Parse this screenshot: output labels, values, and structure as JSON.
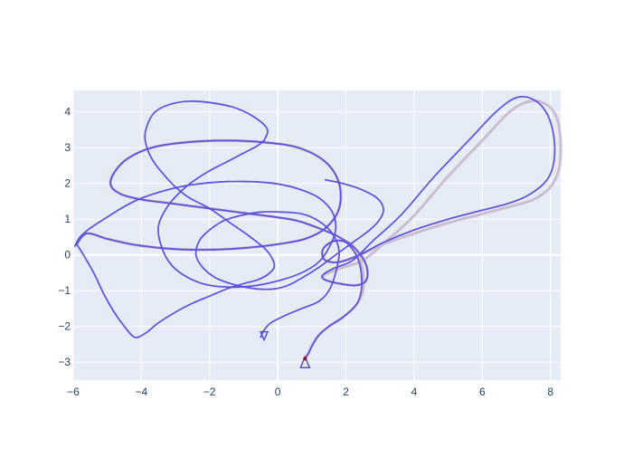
{
  "chart_data": {
    "type": "line",
    "title": "",
    "xlabel": "",
    "ylabel": "",
    "xlim": [
      -6,
      8.3
    ],
    "ylim": [
      -3.5,
      4.6
    ],
    "x_ticks": [
      -6,
      -4,
      -2,
      0,
      2,
      4,
      6,
      8
    ],
    "y_ticks": [
      -3,
      -2,
      -1,
      0,
      1,
      2,
      3,
      4
    ],
    "x_tick_labels": [
      "−6",
      "−4",
      "−2",
      "0",
      "2",
      "4",
      "6",
      "8"
    ],
    "y_tick_labels": [
      "−3",
      "−2",
      "−1",
      "0",
      "1",
      "2",
      "3",
      "4"
    ],
    "grid": true,
    "legend": "none",
    "colors": {
      "plot_bg": "#E5ECF6",
      "grid": "#FFFFFF",
      "reference": "#C8B8CC",
      "trajectory": "#5A4FD9",
      "start_marker": "#7F1F2F"
    },
    "series": [
      {
        "role": "reference",
        "x": [
          0.8,
          0.9,
          1.0,
          1.2,
          1.5,
          1.9,
          2.3,
          2.5,
          2.5,
          2.4,
          2.3,
          2.1,
          1.7,
          1.4,
          1.3,
          1.4,
          1.8,
          2.4,
          3.1,
          4.0,
          5.0,
          6.0,
          6.8,
          7.5,
          8.0,
          8.25,
          8.3,
          8.2,
          7.9,
          7.4,
          6.8,
          6.0,
          5.0,
          4.0,
          3.2,
          2.5,
          1.9,
          1.5,
          1.3,
          1.4,
          1.8,
          2.3,
          2.6,
          2.6,
          2.3,
          1.8,
          1.2,
          0.6,
          0.0,
          -0.8,
          -1.6,
          -2.4,
          -3.2,
          -4.0,
          -4.6,
          -4.9,
          -4.8,
          -4.4,
          -3.7,
          -2.7,
          -1.5,
          -0.4,
          0.6,
          1.4,
          1.8,
          1.8,
          1.4,
          0.8,
          0.0,
          -0.9,
          -1.8,
          -2.7,
          -3.5,
          -4.3,
          -5.0,
          -5.6,
          -5.9
        ],
        "y": [
          -2.9,
          -2.75,
          -2.55,
          -2.25,
          -2.0,
          -1.75,
          -1.4,
          -1.0,
          -0.5,
          -0.1,
          0.15,
          0.35,
          0.4,
          0.25,
          0.05,
          -0.15,
          -0.2,
          0.0,
          0.3,
          0.6,
          0.9,
          1.15,
          1.35,
          1.55,
          1.9,
          2.4,
          3.1,
          3.8,
          4.2,
          4.3,
          4.0,
          3.2,
          2.2,
          1.1,
          0.4,
          -0.15,
          -0.35,
          -0.5,
          -0.6,
          -0.7,
          -0.8,
          -0.85,
          -0.7,
          -0.3,
          0.15,
          0.5,
          0.75,
          0.95,
          1.05,
          1.15,
          1.25,
          1.35,
          1.45,
          1.55,
          1.7,
          1.95,
          2.3,
          2.7,
          3.0,
          3.15,
          3.2,
          3.15,
          3.0,
          2.6,
          2.0,
          1.3,
          0.75,
          0.45,
          0.3,
          0.2,
          0.15,
          0.15,
          0.2,
          0.3,
          0.45,
          0.6,
          0.3
        ]
      },
      {
        "role": "trajectory",
        "x": [
          0.8,
          0.9,
          1.0,
          1.2,
          1.5,
          1.9,
          2.3,
          2.45,
          2.45,
          2.35,
          2.2,
          2.0,
          1.7,
          1.4,
          1.3,
          1.4,
          1.8,
          2.4,
          3.1,
          4.0,
          5.0,
          6.0,
          6.8,
          7.4,
          7.9,
          8.1,
          8.1,
          7.9,
          7.5,
          7.0,
          6.4,
          5.6,
          4.6,
          3.6,
          2.8,
          2.2,
          1.7,
          1.4,
          1.3,
          1.4,
          1.8,
          2.3,
          2.6,
          2.6,
          2.3,
          1.8,
          1.2,
          0.6,
          0.0,
          -0.8,
          -1.6,
          -2.4,
          -3.2,
          -4.0,
          -4.6,
          -4.9,
          -4.8,
          -4.4,
          -3.7,
          -2.7,
          -1.5,
          -0.4,
          0.6,
          1.4,
          1.8,
          1.8,
          1.4,
          0.8,
          0.0,
          -0.9,
          -1.8,
          -2.7,
          -3.5,
          -4.3,
          -5.0,
          -5.6,
          -5.9
        ],
        "y": [
          -2.9,
          -2.75,
          -2.55,
          -2.25,
          -2.0,
          -1.75,
          -1.4,
          -1.0,
          -0.5,
          -0.1,
          0.15,
          0.35,
          0.4,
          0.25,
          0.05,
          -0.15,
          -0.2,
          0.0,
          0.35,
          0.7,
          1.0,
          1.25,
          1.45,
          1.7,
          2.1,
          2.6,
          3.3,
          3.95,
          4.35,
          4.4,
          4.0,
          3.2,
          2.2,
          1.1,
          0.4,
          -0.15,
          -0.35,
          -0.5,
          -0.6,
          -0.7,
          -0.8,
          -0.85,
          -0.7,
          -0.3,
          0.15,
          0.5,
          0.75,
          0.95,
          1.05,
          1.15,
          1.25,
          1.35,
          1.45,
          1.55,
          1.7,
          1.95,
          2.3,
          2.7,
          3.0,
          3.15,
          3.2,
          3.15,
          3.0,
          2.6,
          2.0,
          1.3,
          0.75,
          0.45,
          0.3,
          0.2,
          0.15,
          0.15,
          0.2,
          0.3,
          0.45,
          0.6,
          0.3
        ]
      },
      {
        "role": "trajectory",
        "x": [
          -5.9,
          -5.7,
          -5.4,
          -5.1,
          -4.8,
          -4.5,
          -4.2,
          -3.9,
          -3.5,
          -3.0,
          -2.5,
          -2.0,
          -1.5,
          -1.0,
          -0.6,
          -0.3,
          -0.1,
          -0.3,
          -0.8,
          -1.4,
          -2.0,
          -2.6,
          -3.0,
          -3.3,
          -3.6,
          -3.8,
          -3.9,
          -3.8,
          -3.6,
          -3.2,
          -2.6,
          -1.9,
          -1.2,
          -0.6,
          -0.3,
          -0.4
        ],
        "y": [
          0.3,
          0.0,
          -0.5,
          -1.1,
          -1.6,
          -2.0,
          -2.3,
          -2.2,
          -1.9,
          -1.6,
          -1.35,
          -1.15,
          -0.95,
          -0.8,
          -0.7,
          -0.55,
          -0.3,
          0.1,
          0.5,
          0.9,
          1.3,
          1.6,
          1.9,
          2.2,
          2.55,
          2.9,
          3.3,
          3.7,
          4.0,
          4.2,
          4.3,
          4.25,
          4.1,
          3.8,
          3.5,
          3.2
        ]
      },
      {
        "role": "trajectory",
        "x": [
          -0.4,
          -0.6,
          -1.0,
          -1.5,
          -2.1,
          -2.7,
          -3.2,
          -3.5,
          -3.4,
          -3.1,
          -2.6,
          -2.0,
          -1.3,
          -0.6,
          0.1,
          0.7,
          1.2,
          1.5,
          1.7,
          1.6,
          1.2,
          0.6,
          -0.1,
          -0.8,
          -1.5,
          -2.2,
          -2.9,
          -3.5,
          -4.1,
          -4.6,
          -5.1,
          -5.5,
          -5.8,
          -5.95
        ],
        "y": [
          3.2,
          3.05,
          2.85,
          2.6,
          2.3,
          1.9,
          1.4,
          0.8,
          0.2,
          -0.3,
          -0.65,
          -0.85,
          -0.9,
          -0.85,
          -0.7,
          -0.5,
          -0.2,
          0.2,
          0.7,
          1.2,
          1.6,
          1.85,
          2.0,
          2.05,
          2.05,
          2.0,
          1.9,
          1.75,
          1.55,
          1.3,
          1.0,
          0.75,
          0.5,
          0.25
        ]
      },
      {
        "role": "trajectory",
        "x": [
          -0.5,
          -0.4,
          -0.2,
          0.2,
          0.7,
          1.2,
          1.5,
          1.7,
          1.8,
          1.6,
          1.2,
          0.7,
          0.1,
          -0.5,
          -1.1,
          -1.6,
          -2.0,
          -2.3,
          -2.4,
          -2.2,
          -1.8,
          -1.2,
          -0.6,
          -0.1,
          0.3,
          0.7,
          1.2,
          1.7,
          2.2,
          2.7,
          3.0,
          3.1,
          2.9,
          2.4,
          1.9,
          1.4
        ],
        "y": [
          -2.3,
          -2.1,
          -1.9,
          -1.7,
          -1.5,
          -1.3,
          -1.0,
          -0.5,
          0.1,
          0.6,
          0.95,
          1.15,
          1.2,
          1.2,
          1.1,
          0.95,
          0.7,
          0.4,
          0.0,
          -0.35,
          -0.65,
          -0.85,
          -0.95,
          -0.95,
          -0.85,
          -0.65,
          -0.35,
          0.0,
          0.35,
          0.7,
          1.0,
          1.3,
          1.6,
          1.85,
          2.0,
          2.1
        ]
      }
    ],
    "start_marker": {
      "x": 0.8,
      "y": -2.9
    },
    "end_marker": {
      "x": -0.4,
      "y": -2.3
    }
  }
}
